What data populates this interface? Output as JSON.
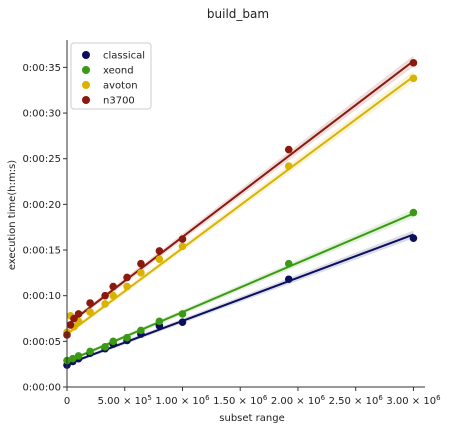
{
  "chart_data": {
    "type": "scatter",
    "title": "build_bam",
    "xlabel": "subset range",
    "ylabel": "execution time(h:m:s)",
    "xlim": [
      0,
      3100000
    ],
    "ylim": [
      0,
      38
    ],
    "x_ticks": [
      {
        "value": 0,
        "base": "0",
        "sup": ""
      },
      {
        "value": 500000,
        "base": "5.00 × 10",
        "sup": "5"
      },
      {
        "value": 1000000,
        "base": "1.00 × 10",
        "sup": "6"
      },
      {
        "value": 1500000,
        "base": "1.50 × 10",
        "sup": "6"
      },
      {
        "value": 2000000,
        "base": "2.00 × 10",
        "sup": "6"
      },
      {
        "value": 2500000,
        "base": "2.50 × 10",
        "sup": "6"
      },
      {
        "value": 3000000,
        "base": "3.00 × 10",
        "sup": "6"
      }
    ],
    "y_ticks": [
      {
        "value": 0,
        "label": "0:00:00"
      },
      {
        "value": 5,
        "label": "0:00:05"
      },
      {
        "value": 10,
        "label": "0:00:10"
      },
      {
        "value": 15,
        "label": "0:00:15"
      },
      {
        "value": 20,
        "label": "0:00:20"
      },
      {
        "value": 25,
        "label": "0:00:25"
      },
      {
        "value": 30,
        "label": "0:00:30"
      },
      {
        "value": 35,
        "label": "0:00:35"
      }
    ],
    "legend_position": "top-left",
    "grid": false,
    "series": [
      {
        "name": "classical",
        "color": "#0b0f5c",
        "x": [
          0,
          50000,
          100000,
          200000,
          330000,
          400000,
          520000,
          640000,
          800000,
          1000000,
          1920000,
          3000000
        ],
        "y": [
          2.4,
          2.8,
          3.1,
          3.7,
          4.2,
          4.7,
          5.1,
          5.8,
          6.7,
          7.1,
          11.8,
          16.3
        ],
        "fit": [
          2.5,
          16.7
        ]
      },
      {
        "name": "xeond",
        "color": "#3a9a14",
        "x": [
          0,
          50000,
          100000,
          200000,
          330000,
          400000,
          520000,
          640000,
          800000,
          1000000,
          1920000,
          3000000
        ],
        "y": [
          2.9,
          3.1,
          3.4,
          3.9,
          4.4,
          5.0,
          5.4,
          6.2,
          7.2,
          8.0,
          13.5,
          19.1
        ],
        "fit": [
          2.8,
          19.0
        ]
      },
      {
        "name": "avoton",
        "color": "#d9b300",
        "x": [
          0,
          30000,
          60000,
          100000,
          200000,
          330000,
          400000,
          520000,
          640000,
          800000,
          1000000,
          1920000,
          3000000
        ],
        "y": [
          6.0,
          7.8,
          6.6,
          7.2,
          8.2,
          9.1,
          10.0,
          11.0,
          12.5,
          14.0,
          15.4,
          24.2,
          33.8
        ],
        "fit": [
          5.8,
          34.0
        ]
      },
      {
        "name": "n3700",
        "color": "#8b1a0e",
        "x": [
          0,
          30000,
          60000,
          100000,
          200000,
          330000,
          400000,
          520000,
          640000,
          800000,
          1000000,
          1920000,
          3000000
        ],
        "y": [
          5.7,
          6.8,
          7.5,
          8.0,
          9.2,
          10.0,
          11.0,
          12.0,
          13.5,
          14.9,
          16.2,
          26.0,
          35.5
        ],
        "fit": [
          6.8,
          35.7
        ]
      }
    ]
  }
}
